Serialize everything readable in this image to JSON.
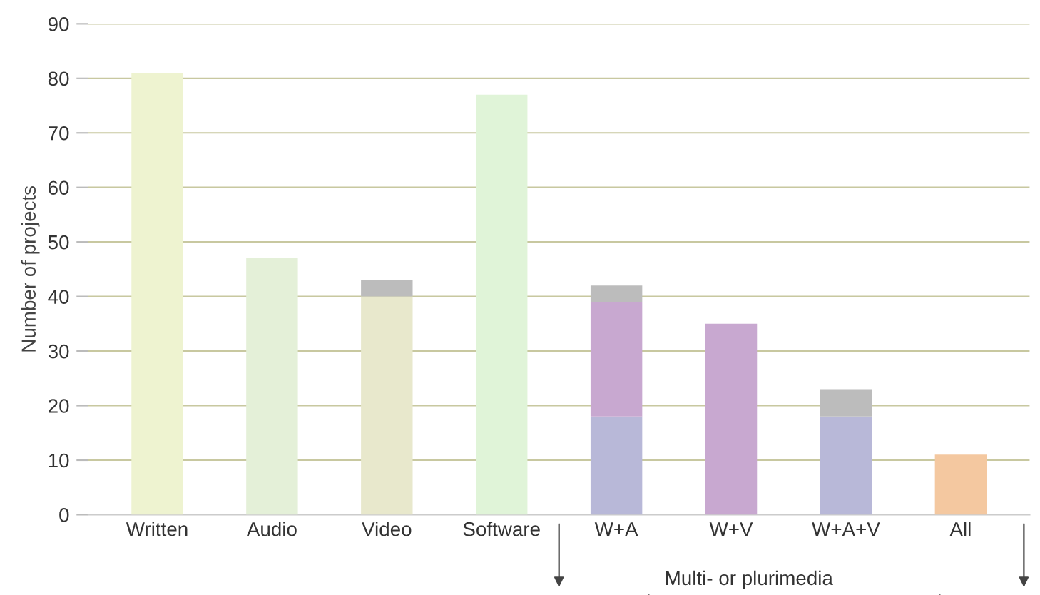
{
  "chart_data": {
    "type": "bar",
    "stacked": true,
    "ylabel": "Number of projects",
    "categories": [
      "Written",
      "Audio",
      "Video",
      "Software",
      "W+A",
      "W+V",
      "W+A+V",
      "All"
    ],
    "series": [
      {
        "colors": [
          "#eef3d0",
          "#e4f0d8",
          "#e8e8cc",
          "#e0f4d8",
          "#b8b8d8",
          "#c8a8d0",
          "#b8b8d8",
          "#f4c8a0"
        ],
        "values": [
          81,
          47,
          40,
          77,
          18,
          35,
          18,
          11
        ]
      },
      {
        "color": "#c8a8d0",
        "values": [
          null,
          null,
          null,
          null,
          21,
          null,
          null,
          null
        ]
      },
      {
        "color": "#bcbcbc",
        "values": [
          null,
          null,
          3,
          null,
          3,
          null,
          5,
          null
        ]
      }
    ],
    "ylim": [
      0,
      90
    ],
    "yticks": [
      0,
      10,
      20,
      30,
      40,
      50,
      60,
      70,
      80,
      90
    ],
    "grid": "y",
    "annotations": [
      "Multi- or plurimedia"
    ]
  }
}
